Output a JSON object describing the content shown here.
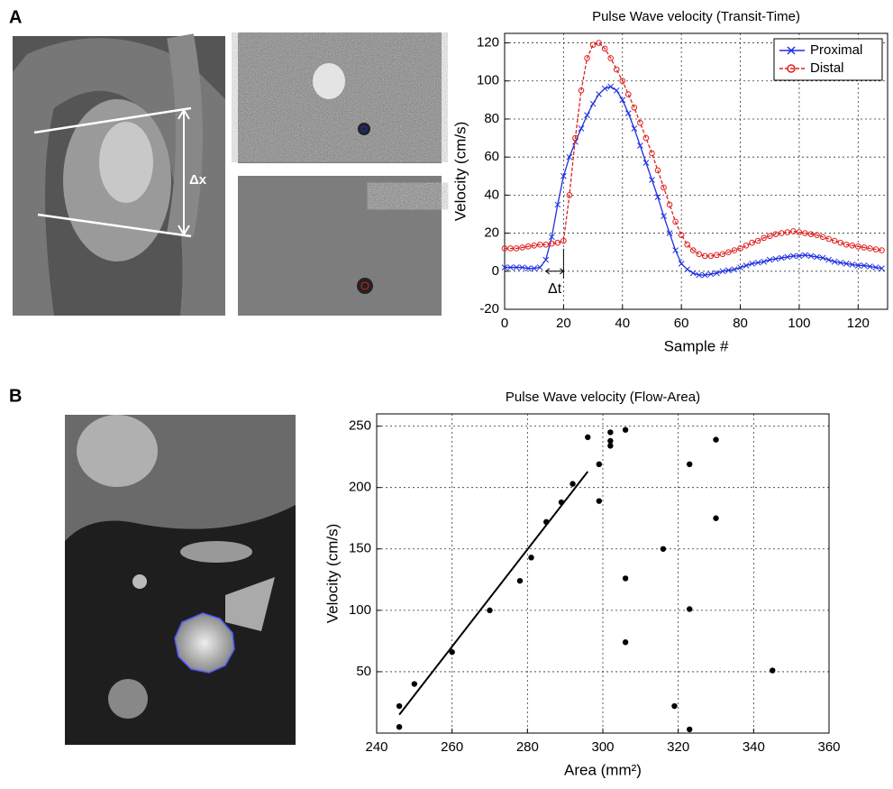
{
  "panel_labels": [
    "A",
    "B"
  ],
  "image_annotation": "Δx",
  "chart_data": [
    {
      "type": "line",
      "title": "Pulse Wave velocity (Transit-Time)",
      "x_label": "Sample #",
      "y_label": "Velocity (cm/s)",
      "x": [
        0,
        2,
        4,
        6,
        8,
        10,
        12,
        14,
        16,
        18,
        20,
        22,
        24,
        26,
        28,
        30,
        32,
        34,
        36,
        38,
        40,
        42,
        44,
        46,
        48,
        50,
        52,
        54,
        56,
        58,
        60,
        62,
        64,
        66,
        68,
        70,
        72,
        74,
        76,
        78,
        80,
        82,
        84,
        86,
        88,
        90,
        92,
        94,
        96,
        98,
        100,
        102,
        104,
        106,
        108,
        110,
        112,
        114,
        116,
        118,
        120,
        122,
        124,
        126,
        128
      ],
      "series": [
        {
          "name": "Proximal",
          "color": "#1f2fe0",
          "marker": "x",
          "linestyle": "solid",
          "values": [
            2,
            2,
            2,
            2,
            1.5,
            1.5,
            2,
            6,
            18,
            35,
            50,
            60,
            68,
            75,
            82,
            88,
            93,
            96,
            97,
            95,
            90,
            83,
            75,
            66,
            57,
            48,
            39,
            29,
            20,
            11,
            4,
            1,
            -1,
            -2,
            -2,
            -1.5,
            -1,
            0,
            0.5,
            1,
            2,
            3,
            4,
            4.5,
            5,
            6,
            6.5,
            7,
            7.5,
            8,
            8,
            8.5,
            8,
            7.5,
            7,
            6,
            5,
            4.5,
            4,
            3.5,
            3,
            3,
            2.5,
            2,
            1.5
          ]
        },
        {
          "name": "Distal",
          "color": "#e0201f",
          "marker": "o",
          "linestyle": "dashed",
          "values": [
            12,
            12,
            12,
            12.5,
            13,
            13.5,
            14,
            14,
            14.5,
            15,
            16,
            40,
            70,
            95,
            112,
            119,
            120,
            117,
            112,
            106,
            100,
            93,
            86,
            78,
            70,
            62,
            53,
            44,
            35,
            26,
            19,
            14,
            11,
            9,
            8,
            8,
            8.5,
            9,
            10,
            11,
            12,
            13.5,
            15,
            16,
            17.5,
            18.5,
            19.5,
            20,
            20.5,
            21,
            20.5,
            20,
            19.5,
            19,
            18,
            17,
            16,
            15,
            14,
            13.5,
            13,
            12.5,
            12,
            11.5,
            11
          ]
        }
      ],
      "xlim": [
        0,
        130
      ],
      "xticks": [
        0,
        20,
        40,
        60,
        80,
        100,
        120
      ],
      "ylim": [
        -20,
        125
      ],
      "yticks": [
        -20,
        0,
        20,
        40,
        60,
        80,
        100,
        120
      ],
      "grid": true,
      "legend": "upper right",
      "annotations": [
        "Δt"
      ]
    },
    {
      "type": "scatter",
      "title": "Pulse Wave velocity (Flow-Area)",
      "x_label": "Area (mm²)",
      "y_label": "Velocity (cm/s)",
      "points": {
        "color": "#000000",
        "x": [
          246,
          246,
          250,
          260,
          270,
          278,
          281,
          285,
          289,
          292,
          296,
          299,
          299,
          302,
          302,
          302,
          306,
          306,
          306,
          316,
          319,
          323,
          323,
          323,
          330,
          330,
          345
        ],
        "y": [
          22,
          5,
          40,
          66,
          100,
          124,
          143,
          172,
          188,
          203,
          241,
          219,
          189,
          245,
          238,
          234,
          247,
          126,
          74,
          150,
          22,
          219,
          101,
          3,
          239,
          175,
          51
        ]
      },
      "fit_line": {
        "color": "#000000",
        "x": [
          246,
          296
        ],
        "values": [
          15,
          213
        ]
      },
      "xlim": [
        240,
        360
      ],
      "xticks": [
        240,
        260,
        280,
        300,
        320,
        340,
        360
      ],
      "ylim": [
        0,
        260
      ],
      "yticks": [
        50,
        100,
        150,
        200,
        250
      ],
      "grid": true
    }
  ]
}
